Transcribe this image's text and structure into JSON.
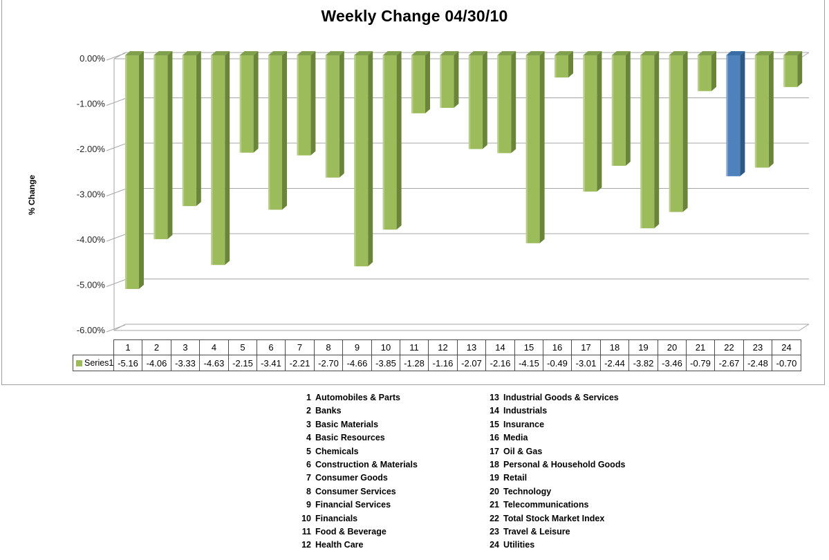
{
  "chart_data": {
    "type": "bar",
    "style": "3d-column",
    "title": "Weekly Change 04/30/10",
    "xlabel": "",
    "ylabel": "% Change",
    "series_name": "Series1",
    "categories": [
      1,
      2,
      3,
      4,
      5,
      6,
      7,
      8,
      9,
      10,
      11,
      12,
      13,
      14,
      15,
      16,
      17,
      18,
      19,
      20,
      21,
      22,
      23,
      24
    ],
    "values": [
      -5.16,
      -4.06,
      -3.33,
      -4.63,
      -2.15,
      -3.41,
      -2.21,
      -2.7,
      -4.66,
      -3.85,
      -1.28,
      -1.16,
      -2.07,
      -2.16,
      -4.15,
      -0.49,
      -3.01,
      -2.44,
      -3.82,
      -3.46,
      -0.79,
      -2.67,
      -2.48,
      -0.7
    ],
    "ylim": [
      -6,
      0
    ],
    "ytick_labels": [
      "0.00%",
      "-1.00%",
      "-2.00%",
      "-3.00%",
      "-4.00%",
      "-5.00%",
      "-6.00%"
    ],
    "grid": true,
    "legend_position": "table-left",
    "highlight_category": 22,
    "colors": {
      "bar_front": "#9CBB5B",
      "bar_side": "#6A8539",
      "bar_top": "#81A04D",
      "highlight_front": "#4F81BD",
      "highlight_side": "#2E5884",
      "highlight_top": "#3A6CA8",
      "gridline": "#A6A6A6",
      "table_border": "#4A4A4A"
    }
  },
  "sector_legend": {
    "left": [
      {
        "num": "1",
        "name": "Automobiles & Parts"
      },
      {
        "num": "2",
        "name": "Banks"
      },
      {
        "num": "3",
        "name": "Basic Materials"
      },
      {
        "num": "4",
        "name": "Basic Resources"
      },
      {
        "num": "5",
        "name": "Chemicals"
      },
      {
        "num": "6",
        "name": "Construction & Materials"
      },
      {
        "num": "7",
        "name": "Consumer Goods"
      },
      {
        "num": "8",
        "name": "Consumer Services"
      },
      {
        "num": "9",
        "name": "Financial Services"
      },
      {
        "num": "10",
        "name": "Financials"
      },
      {
        "num": "11",
        "name": "Food & Beverage"
      },
      {
        "num": "12",
        "name": "Health Care"
      }
    ],
    "right": [
      {
        "num": "13",
        "name": "Industrial Goods & Services"
      },
      {
        "num": "14",
        "name": "Industrials"
      },
      {
        "num": "15",
        "name": "Insurance"
      },
      {
        "num": "16",
        "name": "Media"
      },
      {
        "num": "17",
        "name": "Oil & Gas"
      },
      {
        "num": "18",
        "name": "Personal & Household Goods"
      },
      {
        "num": "19",
        "name": "Retail"
      },
      {
        "num": "20",
        "name": "Technology"
      },
      {
        "num": "21",
        "name": "Telecommunications"
      },
      {
        "num": "22",
        "name": "Total Stock Market Index"
      },
      {
        "num": "23",
        "name": "Travel & Leisure"
      },
      {
        "num": "24",
        "name": "Utilities"
      }
    ]
  }
}
